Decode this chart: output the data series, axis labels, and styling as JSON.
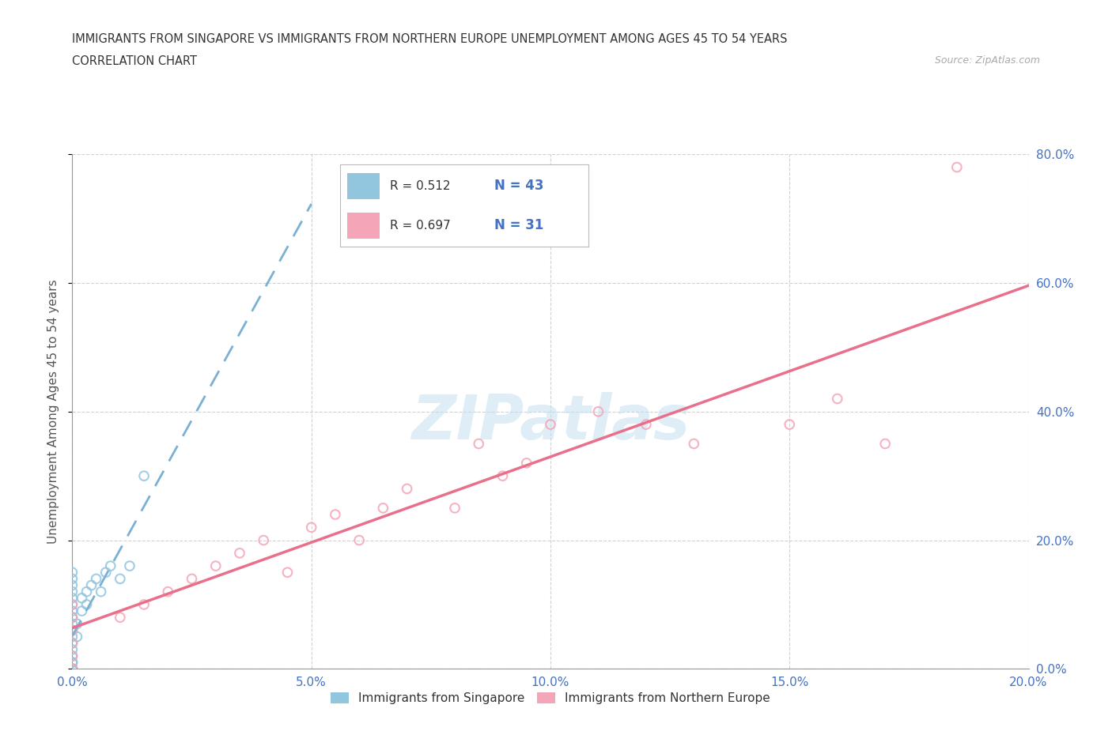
{
  "title_line1": "IMMIGRANTS FROM SINGAPORE VS IMMIGRANTS FROM NORTHERN EUROPE UNEMPLOYMENT AMONG AGES 45 TO 54 YEARS",
  "title_line2": "CORRELATION CHART",
  "source": "Source: ZipAtlas.com",
  "ylabel": "Unemployment Among Ages 45 to 54 years",
  "r_singapore": 0.512,
  "n_singapore": 43,
  "r_northern_europe": 0.697,
  "n_northern_europe": 31,
  "color_singapore": "#92c5de",
  "color_northern_europe": "#f4a6b8",
  "line_singapore_color": "#7ab0d4",
  "line_northern_europe_color": "#e8708a",
  "watermark": "ZIPatlas",
  "xlim": [
    0.0,
    0.2
  ],
  "ylim": [
    0.0,
    0.8
  ],
  "xticks": [
    0.0,
    0.05,
    0.1,
    0.15,
    0.2
  ],
  "yticks": [
    0.0,
    0.2,
    0.4,
    0.6,
    0.8
  ],
  "singapore_x": [
    0.0,
    0.0,
    0.0,
    0.0,
    0.0,
    0.0,
    0.0,
    0.0,
    0.0,
    0.0,
    0.0,
    0.0,
    0.0,
    0.0,
    0.0,
    0.0,
    0.0,
    0.0,
    0.0,
    0.0,
    0.0,
    0.0,
    0.0,
    0.0,
    0.0,
    0.0,
    0.0,
    0.0,
    0.0,
    0.001,
    0.001,
    0.002,
    0.002,
    0.003,
    0.003,
    0.004,
    0.005,
    0.006,
    0.007,
    0.008,
    0.01,
    0.012,
    0.015
  ],
  "singapore_y": [
    0.0,
    0.0,
    0.0,
    0.0,
    0.0,
    0.0,
    0.0,
    0.0,
    0.01,
    0.01,
    0.01,
    0.02,
    0.02,
    0.03,
    0.04,
    0.05,
    0.06,
    0.07,
    0.08,
    0.09,
    0.1,
    0.11,
    0.12,
    0.13,
    0.14,
    0.15,
    0.08,
    0.06,
    0.04,
    0.05,
    0.07,
    0.09,
    0.11,
    0.1,
    0.12,
    0.13,
    0.14,
    0.12,
    0.15,
    0.16,
    0.14,
    0.16,
    0.3
  ],
  "northern_europe_x": [
    0.0,
    0.0,
    0.0,
    0.0,
    0.0,
    0.0,
    0.01,
    0.015,
    0.02,
    0.025,
    0.03,
    0.035,
    0.04,
    0.045,
    0.05,
    0.055,
    0.06,
    0.065,
    0.07,
    0.08,
    0.085,
    0.09,
    0.095,
    0.1,
    0.11,
    0.12,
    0.13,
    0.15,
    0.16,
    0.17,
    0.185
  ],
  "northern_europe_y": [
    0.0,
    0.02,
    0.04,
    0.06,
    0.08,
    0.1,
    0.08,
    0.1,
    0.12,
    0.14,
    0.16,
    0.18,
    0.2,
    0.15,
    0.22,
    0.24,
    0.2,
    0.25,
    0.28,
    0.25,
    0.35,
    0.3,
    0.32,
    0.38,
    0.4,
    0.38,
    0.35,
    0.38,
    0.42,
    0.35,
    0.78
  ],
  "background_color": "#ffffff",
  "grid_color": "#cccccc",
  "title_color": "#333333",
  "tick_label_color": "#4472c4",
  "legend_r_color": "#333333",
  "legend_n_color": "#4472c4",
  "axis_color": "#999999"
}
